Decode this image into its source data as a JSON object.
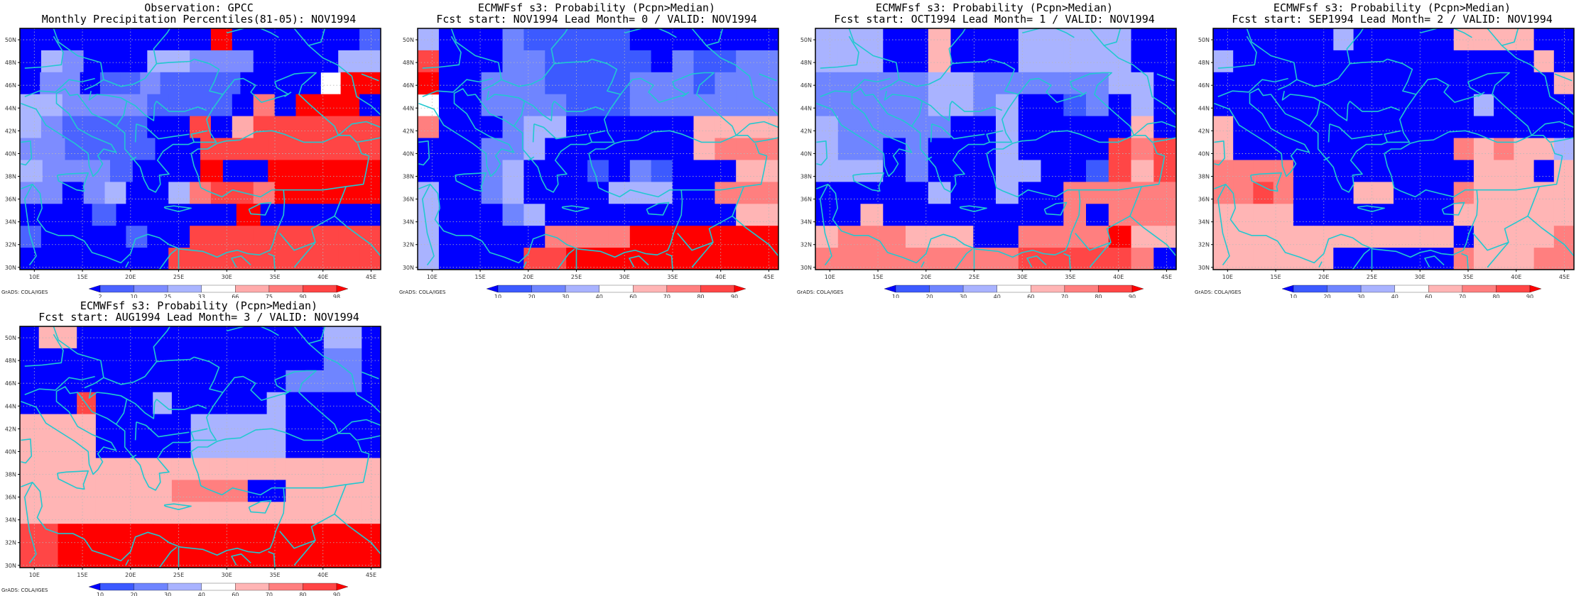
{
  "axes": {
    "lon_ticks": [
      "10E",
      "15E",
      "20E",
      "25E",
      "30E",
      "35E",
      "40E",
      "45E"
    ],
    "lat_ticks": [
      "30N",
      "32N",
      "34N",
      "36N",
      "38N",
      "40N",
      "42N",
      "44N",
      "46N",
      "48N",
      "50N"
    ]
  },
  "colors": {
    "coast": "#22c8d0",
    "grid": "#b8b8b8",
    "scale_obs": [
      "#0000ff",
      "#4b63ff",
      "#7d8cff",
      "#aab5ff",
      "#ffffff",
      "#ffabab",
      "#ff7a7a",
      "#ff4545",
      "#ff0000"
    ],
    "scale_prob": [
      "#0000ff",
      "#3c5aff",
      "#6f85ff",
      "#a9b3ff",
      "#ffffff",
      "#ffb5b5",
      "#ff7f7f",
      "#ff4646",
      "#ff0000"
    ]
  },
  "panels": [
    {
      "title_line1": "Observation: GPCC",
      "title_line2": "Monthly Precipitation Percentiles(81-05): NOV1994",
      "colorbar_labels": [
        "2",
        "10",
        "25",
        "33",
        "66",
        "75",
        "90",
        "98"
      ],
      "credit": "GrADS: COLA/IGES",
      "scale": "obs",
      "grid": [
        "00000000080000001",
        "03200033222000033",
        "022011211110000988",
        "33222211110608880",
        "32111100705777777",
        "2211110077777777",
        "3222100080088888",
        "22023003677688888",
        "000100000800000",
        "10000100777777777",
        "00000007777777777"
      ]
    },
    {
      "title_line1": "ECMWFsf s3: Probability (Pcpn>Median)",
      "title_line2": "Fcst start: NOV1994  Lead Month= 0 / VALID: NOV1994",
      "colorbar_labels": [
        "10",
        "20",
        "30",
        "40",
        "60",
        "70",
        "80",
        "90"
      ],
      "credit": "GrADS: COLA/IGES",
      "scale": "prob",
      "grid": [
        "30002111110000000",
        "70002211111021122",
        "80022211112221222",
        "90022221112222222",
        "60002330000005555",
        "00022300000005666",
        "00023000102100055",
        "30023000033300666",
        "30002300000000055",
        "30000066668888888",
        "30000778888888888"
      ]
    },
    {
      "title_line1": "ECMWFsf s3: Probability (Pcpn>Median)",
      "title_line2": "Fcst start: OCT1994  Lead Month= 1 / VALID: NOV1994",
      "colorbar_labels": [
        "10",
        "20",
        "30",
        "40",
        "60",
        "70",
        "80",
        "90"
      ],
      "credit": "GrADS: COLA/IGES",
      "scale": "prob",
      "grid": [
        "3330050003333300",
        "3330050003333300",
        "2222233222222330",
        "2222233230012030",
        "3222220030000050",
        "3220200030000767",
        "3330200033001757",
        "0000030030066666",
        "0050000000060666",
        "5666555006666855",
        "6666666667777760"
      ]
    },
    {
      "title_line1": "ECMWFsf s3: Probability (Pcpn>Median)",
      "title_line2": "Fcst start: SEP1994  Lead Month= 2 / VALID: NOV1994",
      "colorbar_labels": [
        "10",
        "20",
        "30",
        "40",
        "60",
        "70",
        "80",
        "90"
      ],
      "credit": "GrADS: COLA/IGES",
      "scale": "prob",
      "grid": [
        "000000300000555500",
        "300000000000000050",
        "000000000000000005",
        "000000000000030000",
        "500000000000000000",
        "500000000000656553",
        "666600000000055505",
        "667600055000655555",
        "555500000000555555",
        "555555555555055556",
        "555555000000655566"
      ]
    },
    {
      "title_line1": "ECMWFsf s3: Probability (Pcpn>Median)",
      "title_line2": "Fcst start: AUG1994  Lead Month= 3 / VALID: NOV1994",
      "colorbar_labels": [
        "10",
        "20",
        "30",
        "40",
        "60",
        "70",
        "80",
        "90"
      ],
      "credit": "GrADS: COLA/IGES",
      "scale": "prob",
      "grid": [
        "0550000000000000330",
        "0000000000000000220",
        "0000000000000022220",
        "0007000300000300000",
        "5555000003333300000",
        "5555000003333300000",
        "5555555555555555555",
        "5555555566660055555",
        "5555555555555555555",
        "7788888888888888888",
        "7788888888888888888"
      ]
    }
  ]
}
